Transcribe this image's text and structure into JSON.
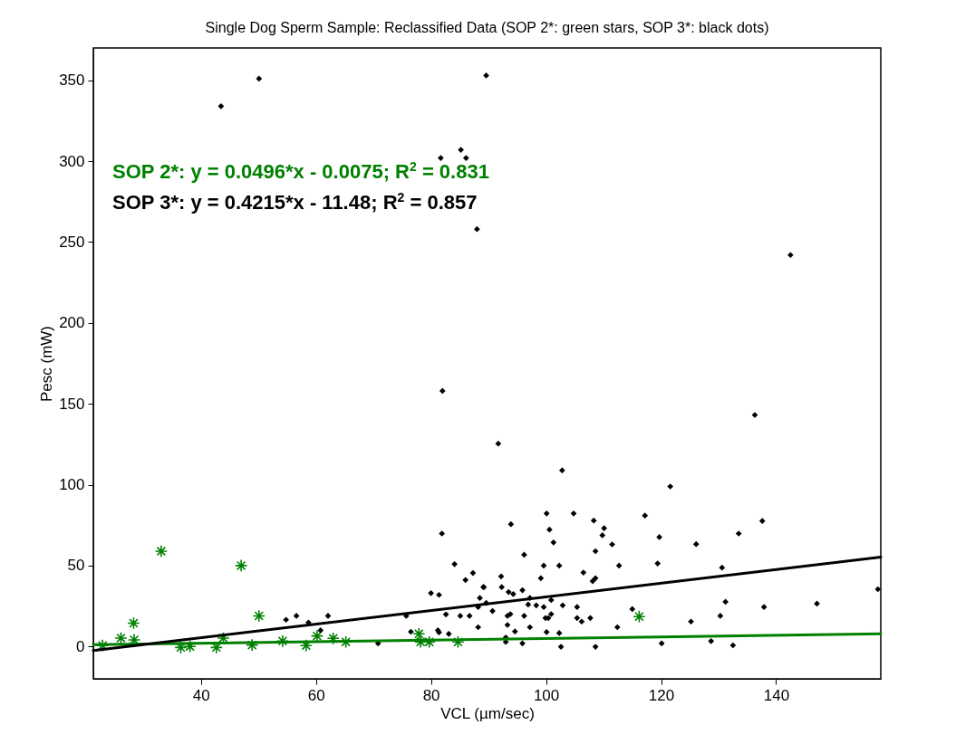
{
  "chart_data": {
    "type": "scatter",
    "title": "Single Dog Sperm Sample: Reclassified Data (SOP 2*: green stars, SOP 3*: black dots)",
    "xlabel": "VCL (µm/sec)",
    "ylabel": "Pesc (mW)",
    "xlim": [
      21.3,
      158.2
    ],
    "ylim": [
      -20,
      370
    ],
    "xticks": [
      40,
      60,
      80,
      100,
      120,
      140
    ],
    "yticks": [
      0,
      50,
      100,
      150,
      200,
      250,
      300,
      350
    ],
    "annotations": [
      "SOP 2*: y = 0.0496*x - 0.0075; R$^{2}$ = 0.831",
      "SOP 3*: y = 0.4215*x - 11.48; R$^{2}$ = 0.857"
    ],
    "series": [
      {
        "marker": "cross",
        "color": "#008000",
        "x": [
          33.1,
          47,
          50.1,
          28.3,
          22.9,
          26.1,
          28.4,
          36.5,
          38.1,
          42.7,
          43.9,
          48.9,
          54.2,
          58.3,
          60.2,
          63,
          65.2,
          77.9,
          78.2,
          79.7,
          84.7,
          116.2
        ],
        "values": [
          58.9,
          50,
          18.9,
          14.4,
          0.6,
          5.2,
          4.1,
          -0.6,
          0,
          -0.6,
          5.2,
          0.9,
          3.3,
          0.6,
          6.5,
          5,
          2.8,
          7.8,
          2.8,
          2.8,
          2.8,
          18.5
        ]
      },
      {
        "marker": "diamond",
        "color": "#000000",
        "x": [
          43.5,
          50.1,
          81.7,
          85.2,
          86.1,
          88,
          89.6,
          82,
          142.5,
          81.9,
          84.1,
          87.3,
          86,
          89.2,
          80,
          81.4,
          88.5,
          88.2,
          82.6,
          85.1,
          86.7,
          75.7,
          88.2,
          76.5,
          81.2,
          81.4,
          83.1,
          70.8,
          54.8,
          56.6,
          58.7,
          62.1,
          60.8,
          89.6,
          91.7,
          102.8,
          121.6,
          136.3,
          100.1,
          104.8,
          93.9,
          100.6,
          101.3,
          108.3,
          110.1,
          109.8,
          111.5,
          108.6,
          96.2,
          117.2,
          119.7,
          126.1,
          133.5,
          137.6,
          99.6,
          102.3,
          112.7,
          119.4,
          130.6,
          99.1,
          106.5,
          108.6,
          108.1,
          92.2,
          92.3,
          89.1,
          93.5,
          94.3,
          95.9,
          97.2,
          96.9,
          98.3,
          99.6,
          100.9,
          90.7,
          102.9,
          105.4,
          93.8,
          93.3,
          96.2,
          100.9,
          100.4,
          99.9,
          105.4,
          106.2,
          107.7,
          93.3,
          97.2,
          112.4,
          115,
          125.2,
          130.3,
          131.2,
          137.9,
          147.1,
          157.7,
          94.6,
          100.1,
          102.3,
          93,
          93,
          95.9,
          102.6,
          108.6,
          120.1,
          128.7,
          132.5
        ],
        "values": [
          334,
          351,
          302,
          307,
          302,
          258,
          353,
          158,
          242,
          69.8,
          50.9,
          45.4,
          41.1,
          36.7,
          33,
          31.9,
          30,
          24.4,
          19.8,
          18.9,
          18.9,
          18.9,
          11.9,
          9.1,
          10,
          8.7,
          7.8,
          1.9,
          16.5,
          18.9,
          14.8,
          18.9,
          10,
          26.9,
          125.4,
          108.9,
          98.9,
          143.1,
          82.2,
          82.2,
          75.6,
          72.2,
          64.3,
          77.8,
          73.1,
          68.7,
          63.1,
          58.9,
          56.7,
          80.9,
          67.6,
          63.3,
          69.8,
          77.6,
          50,
          50,
          50,
          51.3,
          48.7,
          42.2,
          45.7,
          42.2,
          40.4,
          43.3,
          36.7,
          36.7,
          33.7,
          32.4,
          34.8,
          30,
          25.9,
          25.4,
          24.4,
          28.7,
          21.9,
          25.4,
          24.4,
          20,
          18.9,
          18.9,
          20,
          17.6,
          17.6,
          17.6,
          15.4,
          17.6,
          13.3,
          11.9,
          11.9,
          23.1,
          15.4,
          18.9,
          27.6,
          24.4,
          26.5,
          35.4,
          9.3,
          8.9,
          8.3,
          5.6,
          2.8,
          1.9,
          -0.2,
          -0.2,
          1.9,
          3.3,
          0.7
        ]
      },
      {
        "type": "line",
        "color": "#008000",
        "x": [
          21.3,
          158.2
        ],
        "values": [
          1.1,
          7.8
        ]
      },
      {
        "type": "line",
        "color": "#000000",
        "x": [
          21.3,
          158.2
        ],
        "values": [
          -2.5,
          55.2
        ]
      }
    ]
  }
}
